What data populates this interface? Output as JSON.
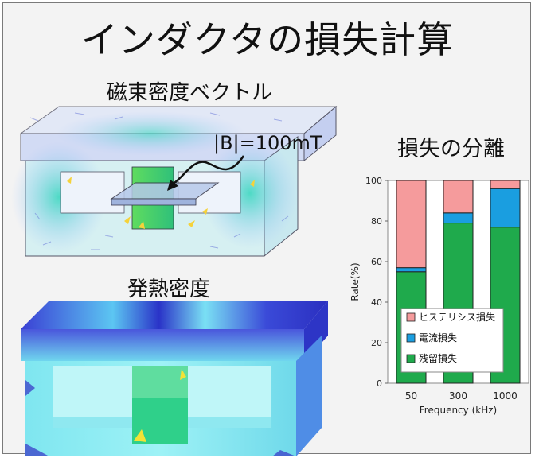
{
  "title": "インダクタの損失計算",
  "flux_label": "磁束密度ベクトル",
  "flux_annotation": "|B|=100mT",
  "heat_label": "発熱密度",
  "chart_data": {
    "type": "bar",
    "stacked": true,
    "title": "損失の分離",
    "xlabel": "Frequency (kHz)",
    "ylabel": "Rate(%)",
    "ylim": [
      0,
      100
    ],
    "yticks": [
      0,
      20,
      40,
      60,
      80,
      100
    ],
    "categories": [
      "50",
      "300",
      "1000"
    ],
    "series": [
      {
        "name": "残留損失",
        "color": "#1faa4c",
        "values": [
          55,
          79,
          77
        ]
      },
      {
        "name": "電流損失",
        "color": "#1a9ee0",
        "values": [
          2,
          5,
          19
        ]
      },
      {
        "name": "ヒステリシス損失",
        "color": "#f59b9c",
        "values": [
          43,
          16,
          4
        ]
      }
    ],
    "legend_order": [
      "ヒステリシス損失",
      "電流損失",
      "残留損失"
    ],
    "legend_position": "bottom-center"
  }
}
